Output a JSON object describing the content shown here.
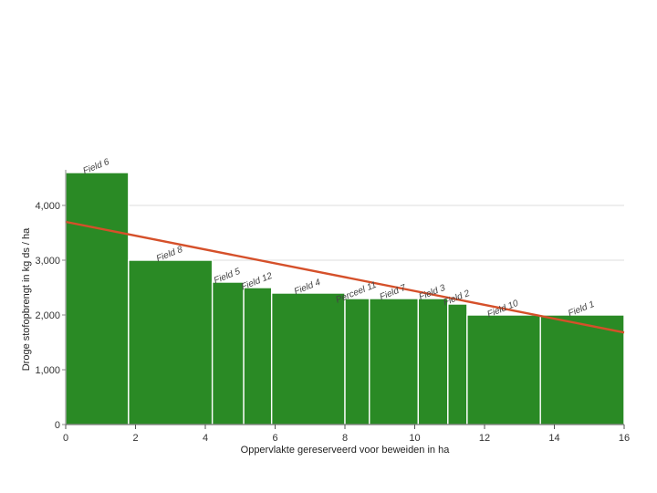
{
  "chart_data": {
    "type": "bar",
    "title": "",
    "xlabel": "Oppervlakte gereserveerd voor beweiden in ha",
    "ylabel": "Droge stofopbrengt in kg ds / ha",
    "xlim": [
      0,
      16
    ],
    "ylim": [
      0,
      4650
    ],
    "x_ticks": [
      0,
      2,
      4,
      6,
      8,
      10,
      12,
      14,
      16
    ],
    "y_ticks": [
      0,
      1000,
      2000,
      3000,
      4000
    ],
    "x_tick_labels": [
      "0",
      "2",
      "4",
      "6",
      "8",
      "10",
      "12",
      "14",
      "16"
    ],
    "y_tick_labels": [
      "0",
      "1,000",
      "2,000",
      "3,000",
      "4,000"
    ],
    "grid": "horizontal",
    "bar_color": "#2a8a25",
    "bars": [
      {
        "label": "Field 6",
        "x_start": 0.0,
        "x_end": 1.8,
        "value": 4600
      },
      {
        "label": "Field 8",
        "x_start": 1.8,
        "x_end": 4.2,
        "value": 3000
      },
      {
        "label": "Field 5",
        "x_start": 4.2,
        "x_end": 5.1,
        "value": 2600
      },
      {
        "label": "Field 12",
        "x_start": 5.1,
        "x_end": 5.9,
        "value": 2500
      },
      {
        "label": "Field 4",
        "x_start": 5.9,
        "x_end": 8.0,
        "value": 2400
      },
      {
        "label": "Perceel 11",
        "x_start": 8.0,
        "x_end": 8.7,
        "value": 2300
      },
      {
        "label": "Field 7",
        "x_start": 8.7,
        "x_end": 10.1,
        "value": 2300
      },
      {
        "label": "Field 3",
        "x_start": 10.1,
        "x_end": 10.95,
        "value": 2300
      },
      {
        "label": "Field 2",
        "x_start": 10.95,
        "x_end": 11.5,
        "value": 2200
      },
      {
        "label": "Field 10",
        "x_start": 11.5,
        "x_end": 13.6,
        "value": 2000
      },
      {
        "label": "Field 1",
        "x_start": 13.6,
        "x_end": 16.0,
        "value": 2000
      }
    ],
    "trend_line": {
      "color": "#d5502a",
      "points": [
        [
          0,
          3700
        ],
        [
          16,
          1680
        ]
      ]
    }
  }
}
